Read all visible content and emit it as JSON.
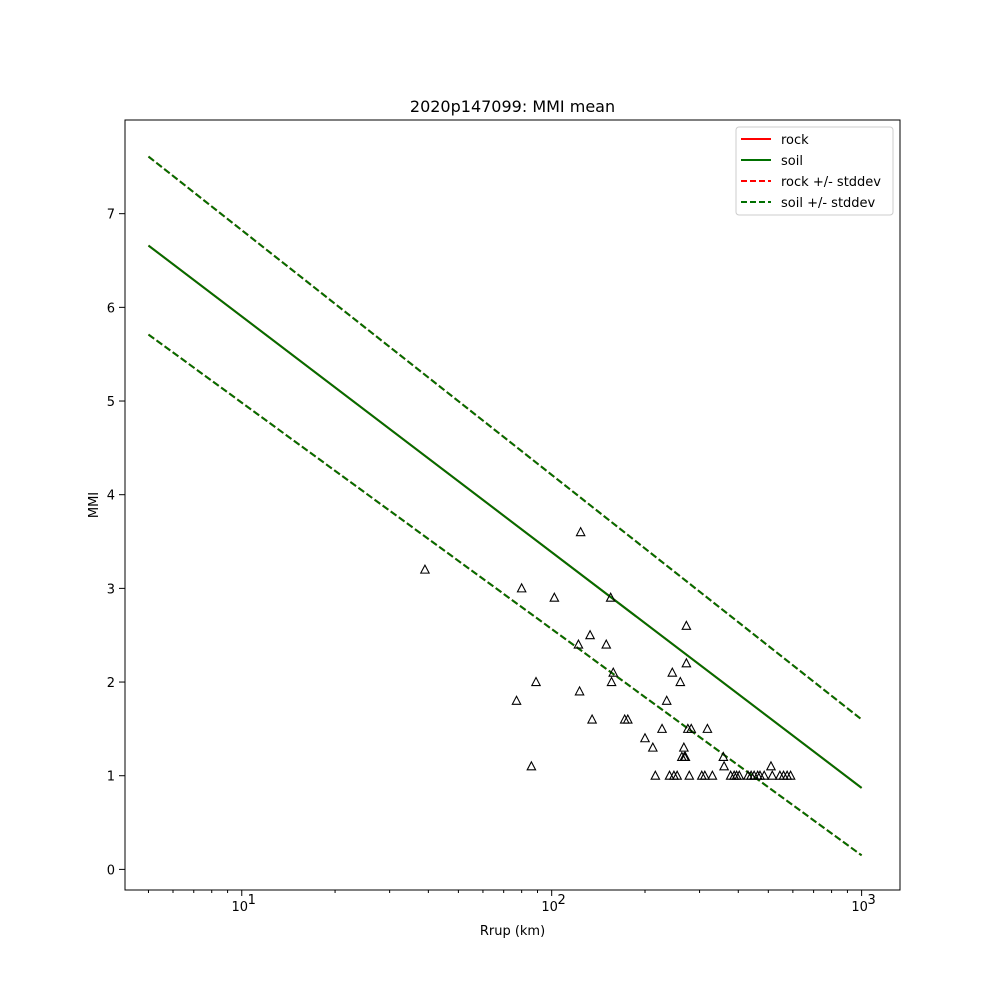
{
  "chart_data": {
    "type": "line",
    "title": "2020p147099: MMI mean",
    "xlabel": "Rrup (km)",
    "ylabel": "MMI",
    "x_scale": "log",
    "xlim": [
      4.2,
      1330
    ],
    "ylim": [
      -0.22,
      8.0
    ],
    "x_ticks": [
      {
        "value": 10,
        "base": "10",
        "exp": "1"
      },
      {
        "value": 100,
        "base": "10",
        "exp": "2"
      },
      {
        "value": 1000,
        "base": "10",
        "exp": "3"
      }
    ],
    "y_ticks": [
      0,
      1,
      2,
      3,
      4,
      5,
      6,
      7
    ],
    "grid": false,
    "legend_position": "top-right",
    "colors": {
      "rock": "#ff0000",
      "soil": "#007000",
      "observed": "#000000"
    },
    "series": [
      {
        "name": "rock",
        "style": "solid",
        "color": "#ff0000",
        "x": [
          5,
          1000
        ],
        "y": [
          6.66,
          0.87
        ]
      },
      {
        "name": "soil",
        "style": "solid",
        "color": "#007000",
        "x": [
          5,
          1000
        ],
        "y": [
          6.66,
          0.87
        ]
      },
      {
        "name": "rock +/- stddev",
        "style": "dashed",
        "color": "#ff0000",
        "x": [
          5,
          1000
        ],
        "y": [
          7.61,
          1.6
        ]
      },
      {
        "name": "rock +/- stddev",
        "style": "dashed",
        "color": "#ff0000",
        "x": [
          5,
          1000
        ],
        "y": [
          5.71,
          0.15
        ]
      },
      {
        "name": "soil +/- stddev",
        "style": "dashed",
        "color": "#007000",
        "x": [
          5,
          1000
        ],
        "y": [
          7.61,
          1.6
        ]
      },
      {
        "name": "soil +/- stddev",
        "style": "dashed",
        "color": "#007000",
        "x": [
          5,
          1000
        ],
        "y": [
          5.71,
          0.15
        ]
      }
    ],
    "legend": [
      {
        "label": "rock",
        "style": "solid",
        "color": "#ff0000"
      },
      {
        "label": "soil",
        "style": "solid",
        "color": "#007000"
      },
      {
        "label": "rock +/- stddev",
        "style": "dashed",
        "color": "#ff0000"
      },
      {
        "label": "soil +/- stddev",
        "style": "dashed",
        "color": "#007000"
      }
    ],
    "observed": {
      "marker": "triangle",
      "points": [
        [
          39,
          3.2
        ],
        [
          77,
          1.8
        ],
        [
          80,
          3.0
        ],
        [
          86,
          1.1
        ],
        [
          89,
          2.0
        ],
        [
          102,
          2.9
        ],
        [
          122,
          2.4
        ],
        [
          123,
          1.9
        ],
        [
          124,
          3.6
        ],
        [
          133,
          2.5
        ],
        [
          135,
          1.6
        ],
        [
          150,
          2.4
        ],
        [
          155,
          2.9
        ],
        [
          156,
          2.0
        ],
        [
          158,
          2.1
        ],
        [
          172,
          1.6
        ],
        [
          176,
          1.6
        ],
        [
          200,
          1.4
        ],
        [
          212,
          1.3
        ],
        [
          216,
          1.0
        ],
        [
          227,
          1.5
        ],
        [
          235,
          1.8
        ],
        [
          240,
          1.0
        ],
        [
          245,
          2.1
        ],
        [
          248,
          1.0
        ],
        [
          254,
          1.0
        ],
        [
          260,
          2.0
        ],
        [
          263,
          1.2
        ],
        [
          267,
          1.3
        ],
        [
          268,
          1.2
        ],
        [
          270,
          1.2
        ],
        [
          272,
          2.6
        ],
        [
          272,
          2.2
        ],
        [
          275,
          1.5
        ],
        [
          278,
          1.0
        ],
        [
          282,
          1.5
        ],
        [
          305,
          1.0
        ],
        [
          312,
          1.0
        ],
        [
          318,
          1.5
        ],
        [
          330,
          1.0
        ],
        [
          358,
          1.2
        ],
        [
          360,
          1.1
        ],
        [
          378,
          1.0
        ],
        [
          388,
          1.0
        ],
        [
          395,
          1.0
        ],
        [
          403,
          1.0
        ],
        [
          430,
          1.0
        ],
        [
          440,
          1.0
        ],
        [
          450,
          1.0
        ],
        [
          462,
          1.0
        ],
        [
          470,
          1.0
        ],
        [
          485,
          1.0
        ],
        [
          510,
          1.1
        ],
        [
          515,
          1.0
        ],
        [
          545,
          1.0
        ],
        [
          560,
          1.0
        ],
        [
          575,
          1.0
        ],
        [
          590,
          1.0
        ]
      ]
    }
  }
}
